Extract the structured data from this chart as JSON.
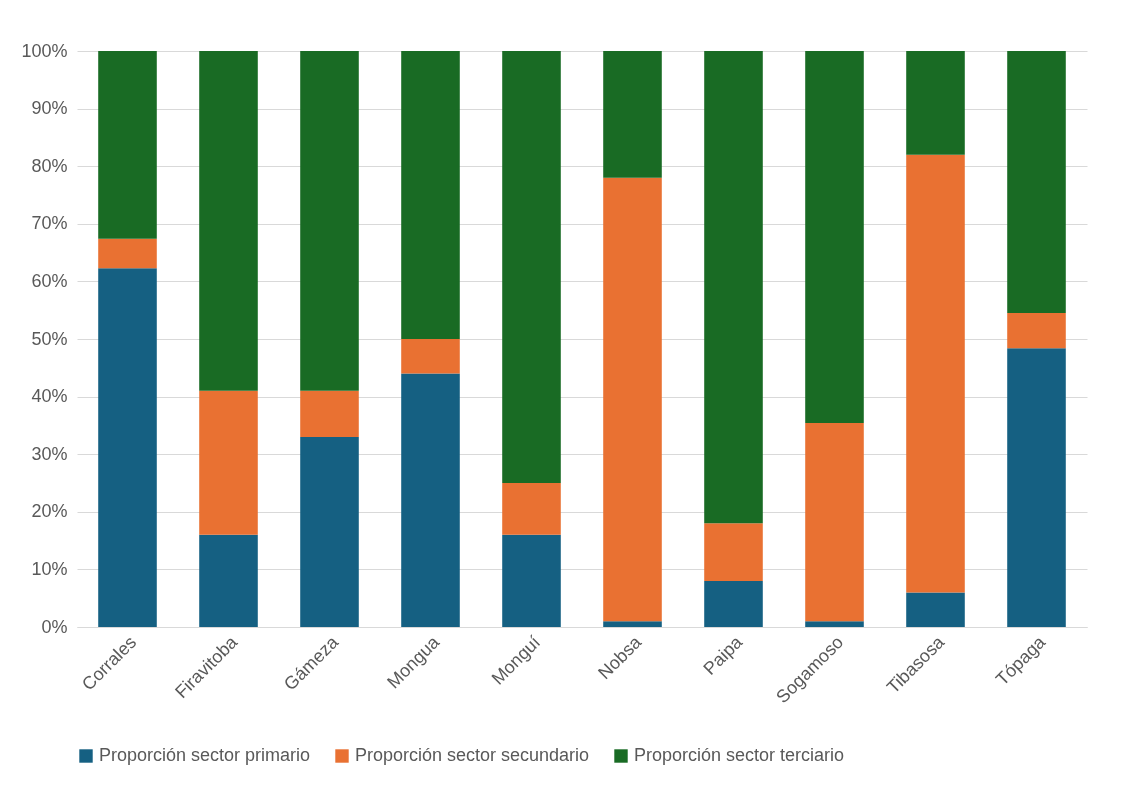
{
  "chart_data": {
    "type": "bar",
    "stacked": true,
    "categories": [
      "Corrales",
      "Firavitoba",
      "Gámeza",
      "Mongua",
      "Monguí",
      "Nobsa",
      "Paipa",
      "Sogamoso",
      "Tibasosa",
      "Tópaga"
    ],
    "series": [
      {
        "name": "Proporción sector primario",
        "color": "#156082",
        "values": [
          62.3,
          16,
          33,
          44,
          16,
          1,
          8,
          1,
          6,
          48.4
        ]
      },
      {
        "name": "Proporción sector secundario",
        "color": "#e97132",
        "values": [
          5.1,
          25,
          8,
          6,
          9,
          77,
          10,
          34.4,
          76,
          6.1
        ]
      },
      {
        "name": "Proporción sector terciario",
        "color": "#196b24",
        "values": [
          32.6,
          59,
          59,
          50,
          75,
          22,
          82,
          64.6,
          18,
          45.5
        ]
      }
    ],
    "ylim": [
      0,
      100
    ],
    "yticks": [
      {
        "value": 0,
        "label": "0%"
      },
      {
        "value": 10,
        "label": "10%"
      },
      {
        "value": 20,
        "label": "20%"
      },
      {
        "value": 30,
        "label": "30%"
      },
      {
        "value": 40,
        "label": "40%"
      },
      {
        "value": 50,
        "label": "50%"
      },
      {
        "value": 60,
        "label": "60%"
      },
      {
        "value": 70,
        "label": "70%"
      },
      {
        "value": 80,
        "label": "80%"
      },
      {
        "value": 90,
        "label": "90%"
      },
      {
        "value": 100,
        "label": "100%"
      }
    ],
    "grid": "y",
    "legend": "bottom"
  }
}
